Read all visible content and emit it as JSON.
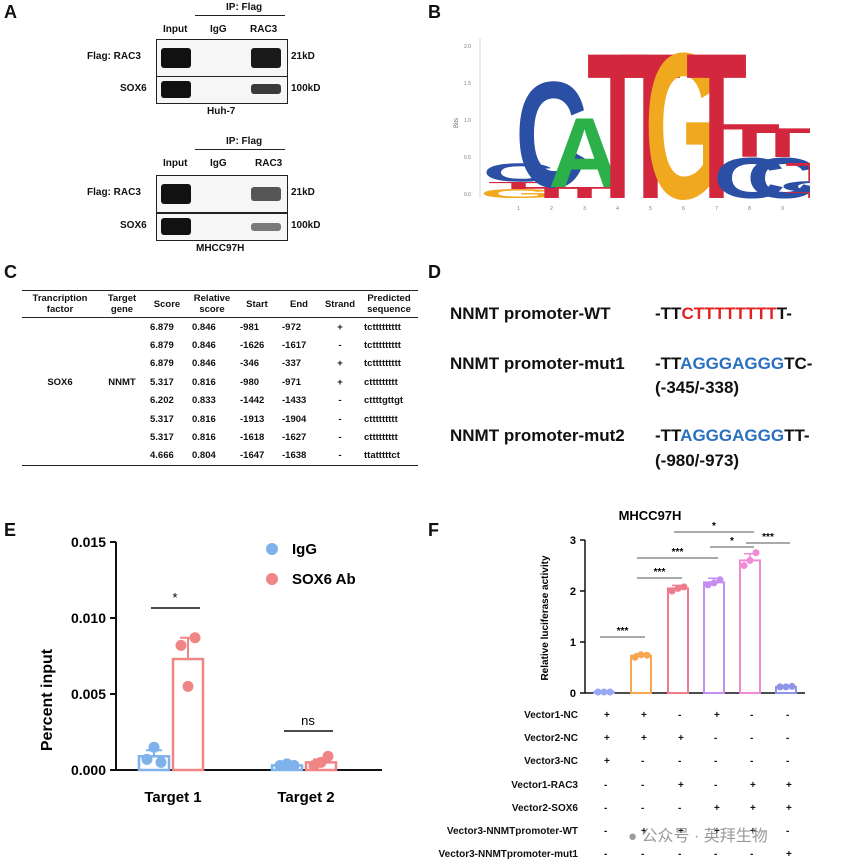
{
  "panels": {
    "a": "A",
    "b": "B",
    "c": "C",
    "d": "D",
    "e": "E",
    "f": "F"
  },
  "panel_a": {
    "top": {
      "ip_header": "IP: Flag",
      "columns": [
        "Input",
        "IgG",
        "RAC3"
      ],
      "rows": [
        {
          "label": "Flag: RAC3",
          "size": "21kD"
        },
        {
          "label": "SOX6",
          "size": "100kD"
        }
      ],
      "cell_line": "Huh-7"
    },
    "bottom": {
      "ip_header": "IP: Flag",
      "columns": [
        "Input",
        "IgG",
        "RAC3"
      ],
      "rows": [
        {
          "label": "Flag: RAC3",
          "size": "21kD"
        },
        {
          "label": "SOX6",
          "size": "100kD"
        }
      ],
      "cell_line": "MHCC97H"
    }
  },
  "panel_b": {
    "ylabel": "Bits",
    "yticks": [
      "2.0",
      "1.5",
      "1.0",
      "0.5",
      "0.0"
    ],
    "xticks": [
      "1",
      "2",
      "3",
      "4",
      "5",
      "6",
      "7",
      "8",
      "9",
      "10"
    ],
    "colors": {
      "A": "#2bb04a",
      "C": "#2a4fa5",
      "G": "#f0a81e",
      "T": "#d3273e"
    }
  },
  "panel_c": {
    "headers": [
      "Trancription factor",
      "Target gene",
      "Score",
      "Relative score",
      "Start",
      "End",
      "Strand",
      "Predicted sequence"
    ],
    "tf": "SOX6",
    "gene": "NNMT",
    "rows": [
      [
        "6.879",
        "0.846",
        "-981",
        "-972",
        "+",
        "tcttttttttt"
      ],
      [
        "6.879",
        "0.846",
        "-1626",
        "-1617",
        "-",
        "tcttttttttt"
      ],
      [
        "6.879",
        "0.846",
        "-346",
        "-337",
        "+",
        "tcttttttttt"
      ],
      [
        "5.317",
        "0.816",
        "-980",
        "-971",
        "+",
        "cttttttttt"
      ],
      [
        "6.202",
        "0.833",
        "-1442",
        "-1433",
        "-",
        "cttttgttgt"
      ],
      [
        "5.317",
        "0.816",
        "-1913",
        "-1904",
        "-",
        "cttttttttt"
      ],
      [
        "5.317",
        "0.816",
        "-1618",
        "-1627",
        "-",
        "cttttttttt"
      ],
      [
        "4.666",
        "0.804",
        "-1647",
        "-1638",
        "-",
        "ttatttttct"
      ]
    ]
  },
  "panel_d": {
    "wt": {
      "label": "NNMT promoter-WT",
      "pre": "-TT",
      "mid": "CTTTTTTTT",
      "post": "T-"
    },
    "mut1": {
      "label": "NNMT promoter-mut1",
      "pre": "-TT",
      "mid": "AGGGAGGG",
      "post": "TC-",
      "pos": "(-345/-338)"
    },
    "mut2": {
      "label": "NNMT promoter-mut2",
      "pre": "-TT",
      "mid": "AGGGAGGG",
      "post": "TT-",
      "pos": "(-980/-973)"
    }
  },
  "panel_e_chart": {
    "type": "bar",
    "ylabel": "Percent input",
    "categories": [
      "Target 1",
      "Target 2"
    ],
    "yticks": [
      "0.000",
      "0.005",
      "0.010",
      "0.015"
    ],
    "ylim": [
      0,
      0.015
    ],
    "legend_position": "top-right",
    "series": [
      {
        "name": "IgG",
        "color": "#7fb1ea",
        "values": [
          0.0009,
          0.0003
        ],
        "sem": [
          0.0004,
          0.0001
        ],
        "points": [
          [
            0.0007,
            0.0015,
            0.0005
          ],
          [
            0.0003,
            0.0004,
            0.0003
          ]
        ]
      },
      {
        "name": "SOX6 Ab",
        "color": "#f08585",
        "values": [
          0.0073,
          0.0005
        ],
        "sem": [
          0.0014,
          0.0002
        ],
        "points": [
          [
            0.0082,
            0.0055,
            0.0087
          ],
          [
            0.0003,
            0.0005,
            0.0009
          ]
        ]
      }
    ],
    "significance": [
      "*",
      "ns"
    ]
  },
  "panel_f_chart": {
    "type": "bar",
    "title": "MHCC97H",
    "ylabel": "Relative luciferase activity",
    "yticks": [
      "0",
      "1",
      "2",
      "3"
    ],
    "ylim": [
      0,
      3
    ],
    "values": [
      0.02,
      0.73,
      2.05,
      2.17,
      2.6,
      0.12
    ],
    "sem": [
      0.01,
      0.04,
      0.06,
      0.08,
      0.13,
      0.02
    ],
    "points": [
      [
        0.02,
        0.02,
        0.02
      ],
      [
        0.7,
        0.75,
        0.74
      ],
      [
        2.0,
        2.05,
        2.08
      ],
      [
        2.12,
        2.16,
        2.22
      ],
      [
        2.5,
        2.6,
        2.75
      ],
      [
        0.12,
        0.12,
        0.13
      ]
    ],
    "colors": [
      "#9aa7f2",
      "#f7a64f",
      "#f07b8c",
      "#c58df0",
      "#f08ad4",
      "#8f94e8"
    ],
    "significance": [
      "***",
      "***",
      "***",
      "*",
      "*",
      "***"
    ],
    "conditions": [
      {
        "label": "Vector1-NC",
        "marks": [
          "+",
          "+",
          "-",
          "+",
          "-",
          "-"
        ]
      },
      {
        "label": "Vector2-NC",
        "marks": [
          "+",
          "+",
          "+",
          "-",
          "-",
          "-"
        ]
      },
      {
        "label": "Vector3-NC",
        "marks": [
          "+",
          "-",
          "-",
          "-",
          "-",
          "-"
        ]
      },
      {
        "label": "Vector1-RAC3",
        "marks": [
          "-",
          "-",
          "+",
          "-",
          "+",
          "+"
        ]
      },
      {
        "label": "Vector2-SOX6",
        "marks": [
          "-",
          "-",
          "-",
          "+",
          "+",
          "+"
        ]
      },
      {
        "label": "Vector3-NNMTpromoter-WT",
        "marks": [
          "-",
          "+",
          "+",
          "+",
          "+",
          "-"
        ]
      },
      {
        "label": "Vector3-NNMTpromoter-mut1",
        "marks": [
          "-",
          "-",
          "-",
          "-",
          "-",
          "+"
        ]
      }
    ]
  },
  "watermark": "公众号 · 英拜生物"
}
